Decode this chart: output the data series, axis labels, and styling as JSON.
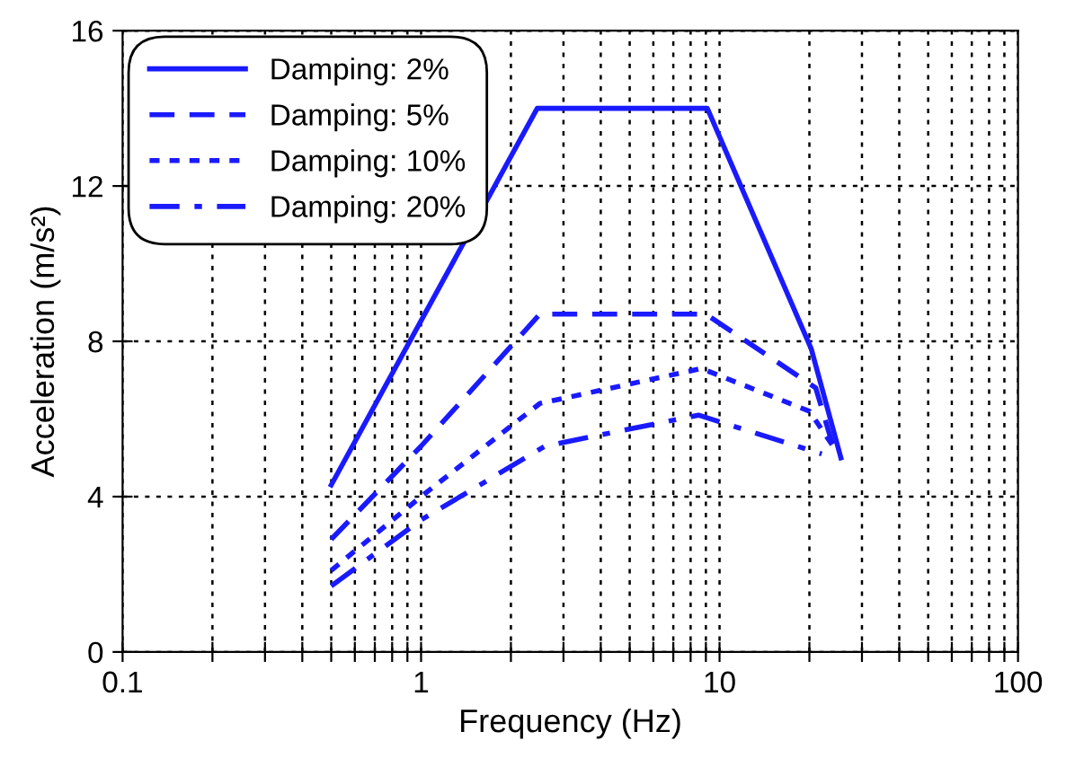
{
  "chart_data": {
    "type": "line",
    "xlabel": "Frequency (Hz)",
    "ylabel": "Acceleration (m/s²)",
    "log": "x",
    "xlim": [
      0.1,
      100
    ],
    "ylim": [
      0,
      16
    ],
    "xticks": [
      0.1,
      {
        "value": 0.2,
        "label": null
      },
      {
        "value": 0.3,
        "label": null
      },
      {
        "value": 0.4,
        "label": null
      },
      {
        "value": 0.5,
        "label": null
      },
      {
        "value": 0.6,
        "label": null
      },
      {
        "value": 0.7,
        "label": null
      },
      {
        "value": 0.8,
        "label": null
      },
      {
        "value": 0.9,
        "label": null
      },
      1,
      {
        "value": 2,
        "label": null
      },
      {
        "value": 3,
        "label": null
      },
      {
        "value": 4,
        "label": null
      },
      {
        "value": 5,
        "label": null
      },
      {
        "value": 6,
        "label": null
      },
      {
        "value": 7,
        "label": null
      },
      {
        "value": 8,
        "label": null
      },
      {
        "value": 9,
        "label": null
      },
      10,
      {
        "value": 20,
        "label": null
      },
      {
        "value": 30,
        "label": null
      },
      {
        "value": 40,
        "label": null
      },
      {
        "value": 50,
        "label": null
      },
      {
        "value": 60,
        "label": null
      },
      {
        "value": 70,
        "label": null
      },
      {
        "value": 80,
        "label": null
      },
      {
        "value": 90,
        "label": null
      },
      100
    ],
    "yticks": [
      0,
      4,
      8,
      12,
      16
    ],
    "grid": true,
    "legend": "top left",
    "series": [
      {
        "name": "Damping: 2%",
        "color": "#1a1aff",
        "line_style": "solid",
        "x": [
          0.5,
          2.45,
          9.1,
          20.3,
          25.5
        ],
        "values": [
          4.3,
          14.0,
          14.0,
          7.8,
          5.0
        ]
      },
      {
        "name": "Damping: 5%",
        "color": "#1a1aff",
        "line_style": "dashed",
        "x": [
          0.5,
          1,
          2.5,
          9,
          21,
          24
        ],
        "values": [
          2.9,
          5.3,
          8.7,
          8.7,
          6.8,
          5.3
        ]
      },
      {
        "name": "Damping: 10%",
        "color": "#1a1aff",
        "line_style": "dotted",
        "x": [
          0.5,
          1,
          2.5,
          8.7,
          20,
          24
        ],
        "values": [
          2.1,
          4.0,
          6.4,
          7.3,
          6.2,
          5.3
        ]
      },
      {
        "name": "Damping: 20%",
        "color": "#1a1aff",
        "line_style": "dashdot",
        "x": [
          0.5,
          1,
          2.6,
          8.5,
          22
        ],
        "values": [
          1.7,
          3.4,
          5.3,
          6.1,
          5.1
        ]
      }
    ]
  }
}
